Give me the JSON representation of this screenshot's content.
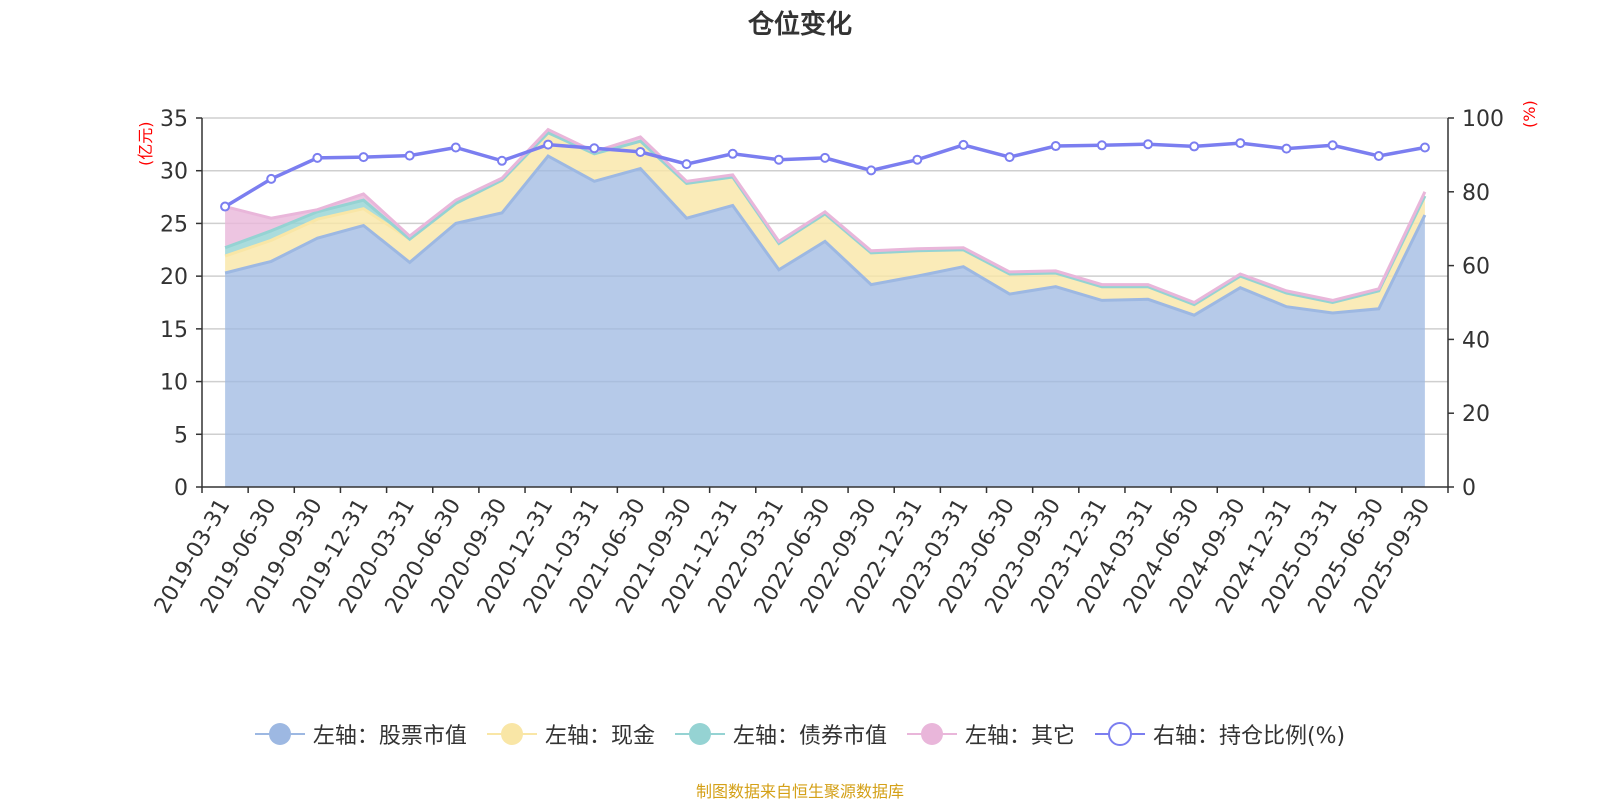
{
  "chart_data": {
    "type": "area",
    "title": "仓位变化",
    "footer": "制图数据来自恒生聚源数据库",
    "left_axis": {
      "unit": "(亿元)",
      "min": 0,
      "max": 35,
      "ticks": [
        "0",
        "5",
        "10",
        "15",
        "20",
        "25",
        "30",
        "35"
      ]
    },
    "right_axis": {
      "unit": "(%)",
      "min": 0,
      "max": 100,
      "ticks": [
        "0",
        "20",
        "40",
        "60",
        "80",
        "100"
      ]
    },
    "categories": [
      "2019-03-31",
      "2019-06-30",
      "2019-09-30",
      "2019-12-31",
      "2020-03-31",
      "2020-06-30",
      "2020-09-30",
      "2020-12-31",
      "2021-03-31",
      "2021-06-30",
      "2021-09-30",
      "2021-12-31",
      "2022-03-31",
      "2022-06-30",
      "2022-09-30",
      "2022-12-31",
      "2023-03-31",
      "2023-06-30",
      "2023-09-30",
      "2023-12-31",
      "2024-03-31",
      "2024-06-30",
      "2024-09-30",
      "2024-12-31",
      "2025-03-31",
      "2025-06-30",
      "2025-09-30"
    ],
    "series": [
      {
        "name": "左轴：股票市值",
        "axis": "left",
        "color": "#9db8e2",
        "values": [
          20.3,
          21.4,
          23.6,
          24.8,
          21.3,
          25.0,
          26.0,
          31.4,
          29.0,
          30.2,
          25.5,
          26.7,
          20.6,
          23.3,
          19.2,
          20.0,
          20.9,
          18.3,
          19.0,
          17.7,
          17.8,
          16.3,
          18.9,
          17.1,
          16.5,
          16.9,
          25.8
        ]
      },
      {
        "name": "左轴：现金",
        "axis": "left",
        "color": "#f9e6a6",
        "values": [
          1.6,
          2.0,
          1.8,
          1.6,
          2.2,
          1.9,
          3.1,
          2.2,
          2.6,
          2.6,
          3.3,
          2.7,
          2.5,
          2.6,
          3.0,
          2.4,
          1.6,
          1.9,
          1.3,
          1.3,
          1.2,
          1.0,
          1.1,
          1.3,
          1.0,
          1.7,
          1.8
        ]
      },
      {
        "name": "左轴：债券市值",
        "axis": "left",
        "color": "#95d3d3",
        "values": [
          0.8,
          0.9,
          0.7,
          0.8,
          0,
          0,
          0,
          0,
          0,
          0,
          0,
          0,
          0,
          0,
          0,
          0,
          0,
          0,
          0,
          0,
          0,
          0,
          0,
          0,
          0,
          0,
          0
        ]
      },
      {
        "name": "左轴：其它",
        "axis": "left",
        "color": "#e9b6da",
        "values": [
          3.9,
          1.2,
          0.2,
          0.6,
          0.3,
          0.3,
          0.2,
          0.3,
          0.2,
          0.4,
          0.2,
          0.2,
          0.2,
          0.2,
          0.2,
          0.2,
          0.2,
          0.2,
          0.2,
          0.2,
          0.2,
          0.2,
          0.2,
          0.2,
          0.2,
          0.2,
          0.4
        ]
      },
      {
        "name": "右轴：持仓比例(%)",
        "axis": "right",
        "color": "#7b7ef0",
        "values": [
          76.0,
          83.5,
          89.2,
          89.4,
          89.8,
          92.0,
          88.4,
          92.8,
          91.8,
          90.8,
          87.5,
          90.3,
          88.7,
          89.2,
          85.8,
          88.7,
          92.7,
          89.4,
          92.4,
          92.6,
          92.9,
          92.3,
          93.2,
          91.7,
          92.6,
          89.7,
          92.0
        ]
      }
    ]
  }
}
